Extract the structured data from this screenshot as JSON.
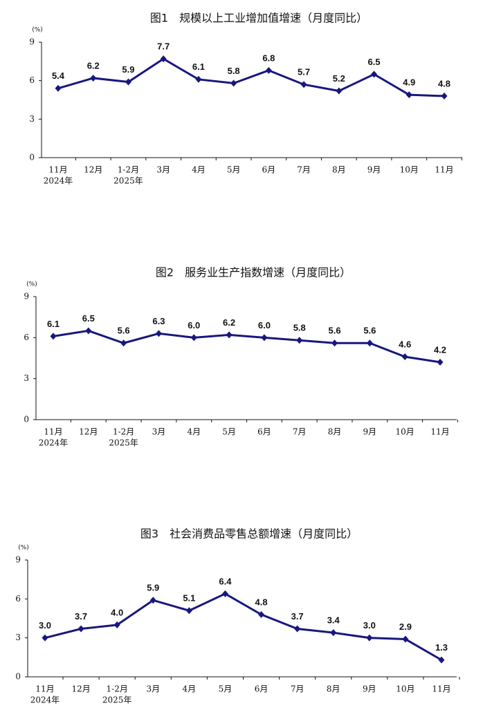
{
  "chart_data": [
    {
      "type": "line",
      "title": "图1　规模以上工业增加值增速（月度同比）",
      "y_unit": "(%)",
      "categories": [
        [
          "11月",
          "2024年"
        ],
        "12月",
        [
          "1-2月",
          "2025年"
        ],
        "3月",
        "4月",
        "5月",
        "6月",
        "7月",
        "8月",
        "9月",
        "10月",
        "11月"
      ],
      "series": [
        {
          "color": "#17177f",
          "values": [
            5.4,
            6.2,
            5.9,
            7.7,
            6.1,
            5.8,
            6.8,
            5.7,
            5.2,
            6.5,
            4.9,
            4.8
          ],
          "value_labels": [
            "5.4",
            "6.2",
            "5.9",
            "7.7",
            "6.1",
            "5.8",
            "6.8",
            "5.7",
            "5.2",
            "6.5",
            "4.9",
            "4.8"
          ]
        }
      ],
      "ylim": [
        0,
        9
      ],
      "yticks": [
        0,
        3,
        6,
        9
      ],
      "grid": false
    },
    {
      "type": "line",
      "title": "图2　服务业生产指数增速（月度同比）",
      "y_unit": "(%)",
      "categories": [
        [
          "11月",
          "2024年"
        ],
        "12月",
        [
          "1-2月",
          "2025年"
        ],
        "3月",
        "4月",
        "5月",
        "6月",
        "7月",
        "8月",
        "9月",
        "10月",
        "11月"
      ],
      "series": [
        {
          "color": "#17177f",
          "values": [
            6.1,
            6.5,
            5.6,
            6.3,
            6.0,
            6.2,
            6.0,
            5.8,
            5.6,
            5.6,
            4.6,
            4.2
          ],
          "value_labels": [
            "6.1",
            "6.5",
            "5.6",
            "6.3",
            "6.0",
            "6.2",
            "6.0",
            "5.8",
            "5.6",
            "5.6",
            "4.6",
            "4.2"
          ]
        }
      ],
      "ylim": [
        0,
        9
      ],
      "yticks": [
        0,
        3,
        6,
        9
      ],
      "grid": false
    },
    {
      "type": "line",
      "title": "图3　社会消费品零售总额增速（月度同比）",
      "y_unit": "(%)",
      "categories": [
        [
          "11月",
          "2024年"
        ],
        "12月",
        [
          "1-2月",
          "2025年"
        ],
        "3月",
        "4月",
        "5月",
        "6月",
        "7月",
        "8月",
        "9月",
        "10月",
        "11月"
      ],
      "series": [
        {
          "color": "#17177f",
          "values": [
            3.0,
            3.7,
            4.0,
            5.9,
            5.1,
            6.4,
            4.8,
            3.7,
            3.4,
            3.0,
            2.9,
            1.3
          ],
          "value_labels": [
            "3.0",
            "3.7",
            "4.0",
            "5.9",
            "5.1",
            "6.4",
            "4.8",
            "3.7",
            "3.4",
            "3.0",
            "2.9",
            "1.3"
          ]
        }
      ],
      "ylim": [
        0,
        9
      ],
      "yticks": [
        0,
        3,
        6,
        9
      ],
      "grid": false
    }
  ]
}
